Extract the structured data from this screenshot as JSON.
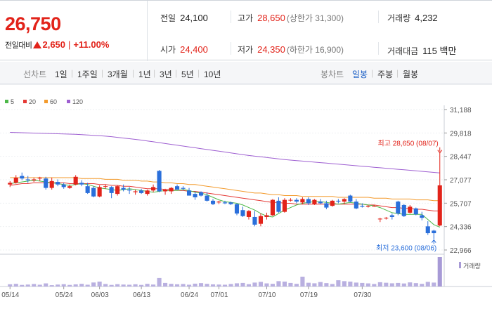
{
  "quote": {
    "price": "26,750",
    "change_label": "전일대비",
    "change_amount": "2,650",
    "change_rate": "+11.00%",
    "prev_close_label": "전일",
    "prev_close": "24,100",
    "high_label": "고가",
    "high": "28,650",
    "upper_limit": "(상한가 31,300)",
    "volume_label": "거래량",
    "volume": "4,232",
    "open_label": "시가",
    "open": "24,400",
    "low_label": "저가",
    "low": "24,350",
    "lower_limit": "(하한가 16,900)",
    "amount_label": "거래대금",
    "amount": "115 백만"
  },
  "period": {
    "line_label": "선차트",
    "line_options": [
      "1일",
      "1주일",
      "3개월",
      "1년",
      "3년",
      "5년",
      "10년"
    ],
    "candle_label": "봉차트",
    "candle_options": [
      "일봉",
      "주봉",
      "월봉"
    ],
    "candle_selected": "일봉"
  },
  "colors": {
    "up": "#e2231a",
    "down": "#2a6fdb",
    "ma5": "#4cb848",
    "ma20": "#e53935",
    "ma60": "#f39a2b",
    "ma120": "#9e5fd1",
    "volume": "#a79ad6"
  },
  "chart_data": {
    "type": "candlestick",
    "legend": [
      "5",
      "20",
      "60",
      "120"
    ],
    "y_ticks": [
      "31,188",
      "29,818",
      "28,447",
      "27,077",
      "25,707",
      "24,336",
      "22,966"
    ],
    "x_ticks": [
      "05/14",
      "05/24",
      "06/03",
      "06/13",
      "06/24",
      "07/01",
      "07/10",
      "07/19",
      "07/30"
    ],
    "ylim": [
      22966,
      31188
    ],
    "annotations": {
      "max_label": "최고 28,650 (08/07)",
      "min_label": "최저 23,600 (08/06)"
    },
    "volume_legend": "거래량",
    "candles": [
      {
        "o": 26800,
        "h": 27000,
        "l": 26650,
        "c": 26900
      },
      {
        "o": 26900,
        "h": 27350,
        "l": 26850,
        "c": 27200
      },
      {
        "o": 27300,
        "h": 27500,
        "l": 27050,
        "c": 27150
      },
      {
        "o": 27100,
        "h": 27300,
        "l": 26900,
        "c": 27050
      },
      {
        "o": 27050,
        "h": 27200,
        "l": 26950,
        "c": 27100
      },
      {
        "o": 27150,
        "h": 27250,
        "l": 27000,
        "c": 27200
      },
      {
        "o": 27150,
        "h": 27250,
        "l": 26500,
        "c": 26600
      },
      {
        "o": 26600,
        "h": 27200,
        "l": 26500,
        "c": 27000
      },
      {
        "o": 26950,
        "h": 27100,
        "l": 26700,
        "c": 26800
      },
      {
        "o": 26800,
        "h": 26900,
        "l": 26550,
        "c": 26650
      },
      {
        "o": 26600,
        "h": 26800,
        "l": 26550,
        "c": 26700
      },
      {
        "o": 26800,
        "h": 27350,
        "l": 26750,
        "c": 27250
      },
      {
        "o": 26900,
        "h": 27050,
        "l": 26700,
        "c": 26800
      },
      {
        "o": 26700,
        "h": 26900,
        "l": 26250,
        "c": 26300
      },
      {
        "o": 26600,
        "h": 26700,
        "l": 26050,
        "c": 26100
      },
      {
        "o": 26100,
        "h": 26750,
        "l": 26050,
        "c": 26650
      },
      {
        "o": 26700,
        "h": 26800,
        "l": 26550,
        "c": 26700
      },
      {
        "o": 26650,
        "h": 26700,
        "l": 26000,
        "c": 26300
      },
      {
        "o": 26250,
        "h": 26750,
        "l": 26150,
        "c": 26700
      },
      {
        "o": 26600,
        "h": 26800,
        "l": 26400,
        "c": 26500
      },
      {
        "o": 26500,
        "h": 26650,
        "l": 26250,
        "c": 26450
      },
      {
        "o": 26350,
        "h": 26500,
        "l": 26200,
        "c": 26400
      },
      {
        "o": 26450,
        "h": 26550,
        "l": 26250,
        "c": 26300
      },
      {
        "o": 26250,
        "h": 26500,
        "l": 26150,
        "c": 26450
      },
      {
        "o": 26450,
        "h": 26800,
        "l": 26350,
        "c": 26650
      },
      {
        "o": 27600,
        "h": 27650,
        "l": 26350,
        "c": 26400
      },
      {
        "o": 26400,
        "h": 26550,
        "l": 26200,
        "c": 26500
      },
      {
        "o": 26400,
        "h": 26650,
        "l": 26250,
        "c": 26600
      },
      {
        "o": 26700,
        "h": 26800,
        "l": 26500,
        "c": 26500
      },
      {
        "o": 26600,
        "h": 26700,
        "l": 26450,
        "c": 26550
      },
      {
        "o": 26450,
        "h": 26600,
        "l": 26150,
        "c": 26150
      },
      {
        "o": 26250,
        "h": 26400,
        "l": 25900,
        "c": 26050
      },
      {
        "o": 26350,
        "h": 26400,
        "l": 26100,
        "c": 26150
      },
      {
        "o": 26150,
        "h": 26350,
        "l": 25800,
        "c": 25850
      },
      {
        "o": 25850,
        "h": 25950,
        "l": 25600,
        "c": 25650
      },
      {
        "o": 25750,
        "h": 25850,
        "l": 25650,
        "c": 25800
      },
      {
        "o": 25750,
        "h": 25850,
        "l": 25650,
        "c": 25700
      },
      {
        "o": 25750,
        "h": 25800,
        "l": 25600,
        "c": 25650
      },
      {
        "o": 25650,
        "h": 25700,
        "l": 25000,
        "c": 25100
      },
      {
        "o": 25300,
        "h": 25500,
        "l": 24900,
        "c": 24950
      },
      {
        "o": 24900,
        "h": 25300,
        "l": 24750,
        "c": 25250
      },
      {
        "o": 24900,
        "h": 25250,
        "l": 24350,
        "c": 24450
      },
      {
        "o": 24500,
        "h": 25100,
        "l": 24350,
        "c": 24950
      },
      {
        "o": 24900,
        "h": 25150,
        "l": 24750,
        "c": 25000
      },
      {
        "o": 25000,
        "h": 25950,
        "l": 24950,
        "c": 25900
      },
      {
        "o": 25850,
        "h": 26050,
        "l": 25150,
        "c": 25200
      },
      {
        "o": 25200,
        "h": 26000,
        "l": 25150,
        "c": 25900
      },
      {
        "o": 25900,
        "h": 26000,
        "l": 25800,
        "c": 25900
      },
      {
        "o": 25900,
        "h": 26000,
        "l": 25700,
        "c": 25800
      },
      {
        "o": 25750,
        "h": 26050,
        "l": 25650,
        "c": 25950
      },
      {
        "o": 25950,
        "h": 26050,
        "l": 25600,
        "c": 25700
      },
      {
        "o": 25650,
        "h": 25950,
        "l": 25600,
        "c": 25900
      },
      {
        "o": 25800,
        "h": 25950,
        "l": 25650,
        "c": 25700
      },
      {
        "o": 25700,
        "h": 25850,
        "l": 25350,
        "c": 25450
      },
      {
        "o": 25550,
        "h": 25900,
        "l": 25500,
        "c": 25850
      },
      {
        "o": 25850,
        "h": 25950,
        "l": 25700,
        "c": 25800
      },
      {
        "o": 25800,
        "h": 26000,
        "l": 25650,
        "c": 25950
      },
      {
        "o": 26150,
        "h": 26200,
        "l": 25750,
        "c": 25800
      },
      {
        "o": 25800,
        "h": 25950,
        "l": 25350,
        "c": 25400
      },
      {
        "o": 25550,
        "h": 25700,
        "l": 25450,
        "c": 25500
      },
      {
        "o": 25500,
        "h": 25600,
        "l": 25450,
        "c": 25550
      },
      {
        "o": 25550,
        "h": 25600,
        "l": 25500,
        "c": 25550
      },
      {
        "o": 24800,
        "h": 24850,
        "l": 24600,
        "c": 24800
      },
      {
        "o": 24850,
        "h": 24900,
        "l": 24750,
        "c": 24850
      },
      {
        "o": 25000,
        "h": 25100,
        "l": 24750,
        "c": 24900
      },
      {
        "o": 25800,
        "h": 25850,
        "l": 25000,
        "c": 25100
      },
      {
        "o": 25600,
        "h": 25650,
        "l": 24900,
        "c": 24950
      },
      {
        "o": 25150,
        "h": 25600,
        "l": 25100,
        "c": 25500
      },
      {
        "o": 25400,
        "h": 25450,
        "l": 25000,
        "c": 25050
      },
      {
        "o": 25000,
        "h": 25200,
        "l": 24700,
        "c": 24850
      },
      {
        "o": 24350,
        "h": 24650,
        "l": 23850,
        "c": 23950
      },
      {
        "o": 24100,
        "h": 24150,
        "l": 23600,
        "c": 23950
      },
      {
        "o": 24400,
        "h": 28650,
        "l": 24350,
        "c": 26750
      }
    ],
    "ma5": [
      26850,
      26900,
      26950,
      27000,
      27050,
      27000,
      26950,
      26900,
      26850,
      26800,
      26750,
      26800,
      26850,
      26800,
      26700,
      26600,
      26550,
      26500,
      26450,
      26500,
      26550,
      26500,
      26450,
      26400,
      26350,
      26400,
      26450,
      26450,
      26450,
      26500,
      26450,
      26350,
      26300,
      26200,
      26050,
      25900,
      25800,
      25750,
      25700,
      25600,
      25450,
      25300,
      25100,
      24950,
      24900,
      25100,
      25300,
      25450,
      25600,
      25700,
      25750,
      25800,
      25800,
      25750,
      25700,
      25650,
      25700,
      25750,
      25700,
      25650,
      25600,
      25550,
      25450,
      25300,
      25150,
      25100,
      25050,
      25050,
      25050,
      25050,
      24750,
      24450,
      24300
    ],
    "ma20": [
      26750,
      26800,
      26850,
      26850,
      26900,
      26900,
      26900,
      26900,
      26900,
      26900,
      26850,
      26850,
      26850,
      26850,
      26850,
      26800,
      26800,
      26750,
      26750,
      26700,
      26700,
      26650,
      26600,
      26550,
      26550,
      26550,
      26500,
      26500,
      26450,
      26450,
      26400,
      26400,
      26350,
      26300,
      26250,
      26200,
      26150,
      26100,
      26050,
      26000,
      25950,
      25900,
      25850,
      25800,
      25750,
      25750,
      25700,
      25700,
      25650,
      25650,
      25650,
      25650,
      25650,
      25650,
      25650,
      25650,
      25650,
      25650,
      25650,
      25650,
      25600,
      25600,
      25550,
      25500,
      25450,
      25450,
      25400,
      25400,
      25350,
      25350,
      25300,
      25250,
      25250
    ],
    "ma60": [
      27200,
      27200,
      27200,
      27200,
      27200,
      27200,
      27200,
      27200,
      27200,
      27200,
      27200,
      27200,
      27150,
      27150,
      27150,
      27150,
      27100,
      27100,
      27100,
      27050,
      27050,
      27050,
      27000,
      27000,
      26950,
      26950,
      26900,
      26900,
      26850,
      26850,
      26800,
      26800,
      26750,
      26700,
      26650,
      26600,
      26550,
      26500,
      26450,
      26400,
      26350,
      26300,
      26300,
      26250,
      26200,
      26200,
      26150,
      26150,
      26150,
      26100,
      26100,
      26100,
      26100,
      26100,
      26100,
      26050,
      26050,
      26050,
      26050,
      26050,
      26050,
      26000,
      26000,
      26000,
      25950,
      25950,
      25950,
      25950,
      25900,
      25900,
      25900,
      25850,
      25850
    ],
    "ma120": [
      29850,
      29840,
      29830,
      29820,
      29810,
      29800,
      29790,
      29780,
      29770,
      29760,
      29750,
      29740,
      29720,
      29700,
      29680,
      29660,
      29630,
      29600,
      29560,
      29520,
      29480,
      29440,
      29400,
      29350,
      29300,
      29250,
      29200,
      29150,
      29100,
      29050,
      29000,
      28950,
      28900,
      28850,
      28800,
      28750,
      28700,
      28650,
      28600,
      28550,
      28500,
      28460,
      28420,
      28380,
      28340,
      28300,
      28260,
      28230,
      28200,
      28170,
      28140,
      28110,
      28080,
      28050,
      28020,
      27990,
      27960,
      27930,
      27900,
      27870,
      27840,
      27810,
      27780,
      27750,
      27720,
      27690,
      27660,
      27630,
      27600,
      27570,
      27540,
      27510,
      27480
    ],
    "volume": [
      25,
      30,
      18,
      22,
      28,
      20,
      35,
      15,
      22,
      26,
      18,
      24,
      30,
      20,
      45,
      55,
      28,
      18,
      26,
      22,
      20,
      25,
      18,
      30,
      22,
      95,
      40,
      30,
      25,
      28,
      20,
      32,
      38,
      30,
      24,
      22,
      20,
      28,
      36,
      40,
      26,
      44,
      52,
      35,
      30,
      60,
      55,
      40,
      30,
      110,
      42,
      36,
      50,
      38,
      28,
      70,
      60,
      55,
      44,
      40,
      35,
      28,
      48,
      42,
      36,
      40,
      34,
      46,
      38,
      30,
      52,
      44,
      330
    ]
  }
}
